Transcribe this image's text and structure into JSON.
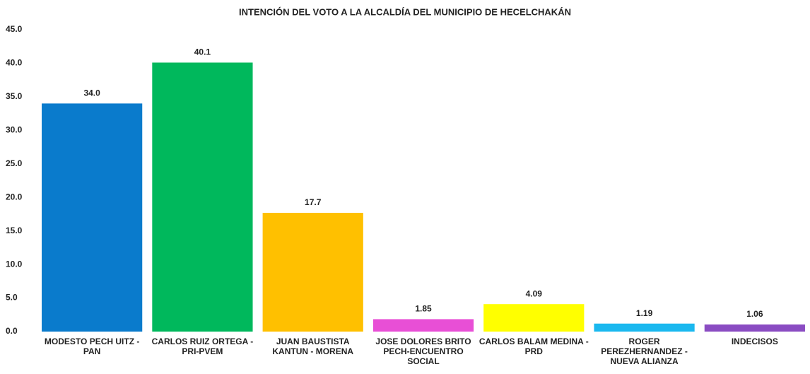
{
  "chart_data": {
    "type": "bar",
    "title": "INTENCIÓN DEL VOTO A LA ALCALDÍA DEL MUNICIPIO DE HECELCHAKÁN",
    "categories": [
      "MODESTO PECH UITZ - PAN",
      "CARLOS RUIZ ORTEGA - PRI-PVEM",
      "JUAN BAUSTISTA KANTUN - MORENA",
      "JOSE DOLORES BRITO PECH-ENCUENTRO SOCIAL",
      "CARLOS BALAM MEDINA - PRD",
      "ROGER PEREZHERNANDEZ - NUEVA ALIANZA",
      "INDECISOS"
    ],
    "values": [
      34.0,
      40.1,
      17.7,
      1.85,
      4.09,
      1.19,
      1.06
    ],
    "value_labels": [
      "34.0",
      "40.1",
      "17.7",
      "1.85",
      "4.09",
      "1.19",
      "1.06"
    ],
    "colors": [
      "#0a7bcc",
      "#00b85c",
      "#ffc000",
      "#e84fd6",
      "#ffff00",
      "#1ab8ef",
      "#8a4cc2"
    ],
    "ylim": [
      0,
      45
    ],
    "yticks": [
      {
        "value": 0,
        "label": "0.0"
      },
      {
        "value": 5,
        "label": "5.0"
      },
      {
        "value": 10,
        "label": "10.0"
      },
      {
        "value": 15,
        "label": "15.0"
      },
      {
        "value": 20,
        "label": "20.0"
      },
      {
        "value": 25,
        "label": "25.0"
      },
      {
        "value": 30,
        "label": "30.0"
      },
      {
        "value": 35,
        "label": "35.0"
      },
      {
        "value": 40,
        "label": "40.0"
      },
      {
        "value": 45,
        "label": "45.0"
      }
    ],
    "grid": false
  }
}
